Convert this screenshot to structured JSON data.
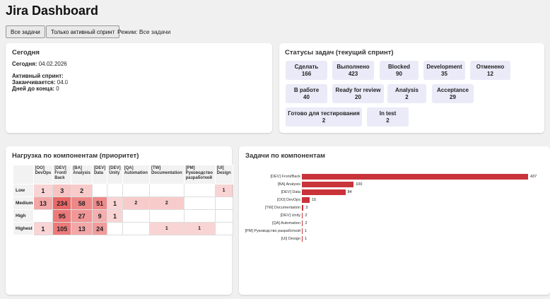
{
  "app": {
    "title": "Jira Dashboard"
  },
  "toolbar": {
    "all_tasks_label": "Все задачи",
    "active_sprint_label": "Только активный спринт",
    "mode_text": "Режим: Все задачи"
  },
  "today": {
    "title": "Сегодня",
    "today_label": "Сегодня:",
    "today_value": "04.02.2026",
    "sprint_label": "Активный спринт:",
    "sprint_value": "",
    "ends_label": "Заканчивается:",
    "ends_value": "04.0",
    "days_label": "Дней до конца:",
    "days_value": "0"
  },
  "statuses": {
    "title": "Статусы задач (текущий спринт)",
    "items": [
      {
        "label": "Сделать",
        "count": "166"
      },
      {
        "label": "Выполнено",
        "count": "423"
      },
      {
        "label": "Blocked",
        "count": "90"
      },
      {
        "label": "Development",
        "count": "35"
      },
      {
        "label": "Отменено",
        "count": "12"
      },
      {
        "label": "В работе",
        "count": "40"
      },
      {
        "label": "Ready for review",
        "count": "20"
      },
      {
        "label": "Analysis",
        "count": "2"
      },
      {
        "label": "Acceptance",
        "count": "29"
      },
      {
        "label": "Готово для тестирования",
        "count": "2"
      },
      {
        "label": "In test",
        "count": "2"
      }
    ]
  },
  "heatmap": {
    "title": "Нагрузка по компонентам (приоритет)",
    "columns": [
      "[OO] DevOps",
      "[DEV] Front/ Back",
      "[BA] Analysis",
      "[DEV] Data",
      "[DEV] Unity",
      "[QA] Automation",
      "[TW] Documentation",
      "[PM] Руководство разработкой",
      "[UI] Design"
    ],
    "rows": [
      {
        "label": "Low",
        "cells": [
          "1",
          "3",
          "2",
          "",
          "",
          "",
          "",
          "",
          "1"
        ]
      },
      {
        "label": "Medium",
        "cells": [
          "13",
          "234",
          "58",
          "51",
          "1",
          "2",
          "2",
          "",
          ""
        ]
      },
      {
        "label": "High",
        "cells": [
          "",
          "95",
          "27",
          "9",
          "1",
          "",
          "",
          "",
          ""
        ]
      },
      {
        "label": "Highest",
        "cells": [
          "1",
          "105",
          "13",
          "24",
          "",
          "",
          "1",
          "1",
          ""
        ]
      }
    ],
    "heat_color": "#e74c4c"
  },
  "components": {
    "title": "Задачи по компонентам",
    "bar_color": "#c9333a"
  },
  "chart_data": {
    "type": "bar",
    "orientation": "horizontal",
    "categories": [
      "[DEV] Front/Back",
      "[BA] Analysis",
      "[DEV] Data",
      "[OO] DevOps",
      "[TW] Documentation",
      "[DEV] Unity",
      "[QA] Automation",
      "[PM] Руководство разработкой",
      "[UI] Design"
    ],
    "values": [
      437,
      100,
      84,
      15,
      3,
      2,
      2,
      1,
      1
    ],
    "xlim": [
      0,
      437
    ]
  }
}
